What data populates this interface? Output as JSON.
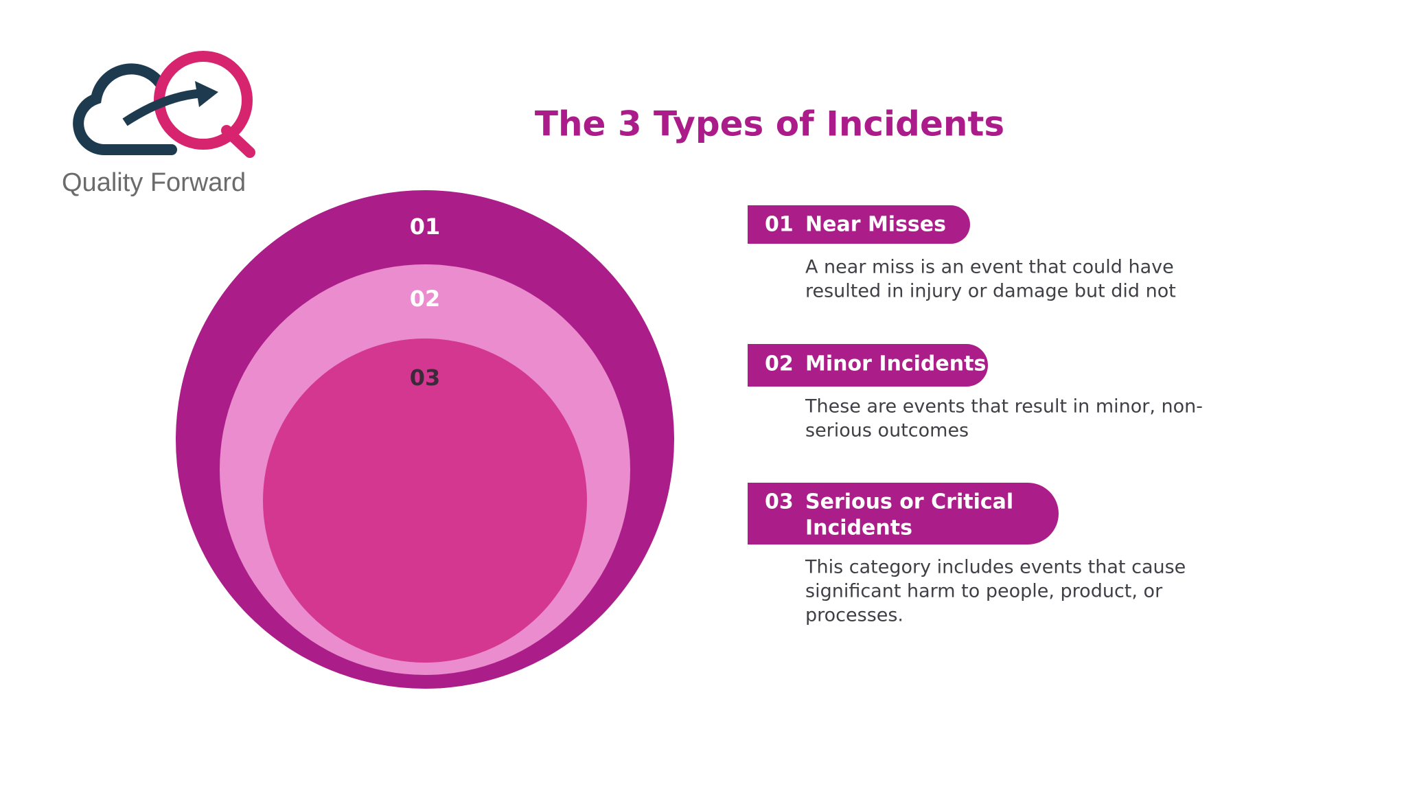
{
  "logo": {
    "text": "Quality Forward"
  },
  "title": "The 3 Types of Incidents",
  "circles": [
    {
      "label": "01"
    },
    {
      "label": "02"
    },
    {
      "label": "03"
    }
  ],
  "items": [
    {
      "number": "01",
      "title": [
        "Near Misses"
      ],
      "description": [
        "A near miss is an event that could have",
        "resulted in injury or damage but did not"
      ]
    },
    {
      "number": "02",
      "title": [
        "Minor Incidents"
      ],
      "description": [
        "These are events that result in minor, non-",
        "serious outcomes"
      ]
    },
    {
      "number": "03",
      "title": [
        "Serious or Critical",
        "Incidents"
      ],
      "description": [
        "This category includes events that cause",
        "significant harm to people, product, or",
        "processes."
      ]
    }
  ]
}
